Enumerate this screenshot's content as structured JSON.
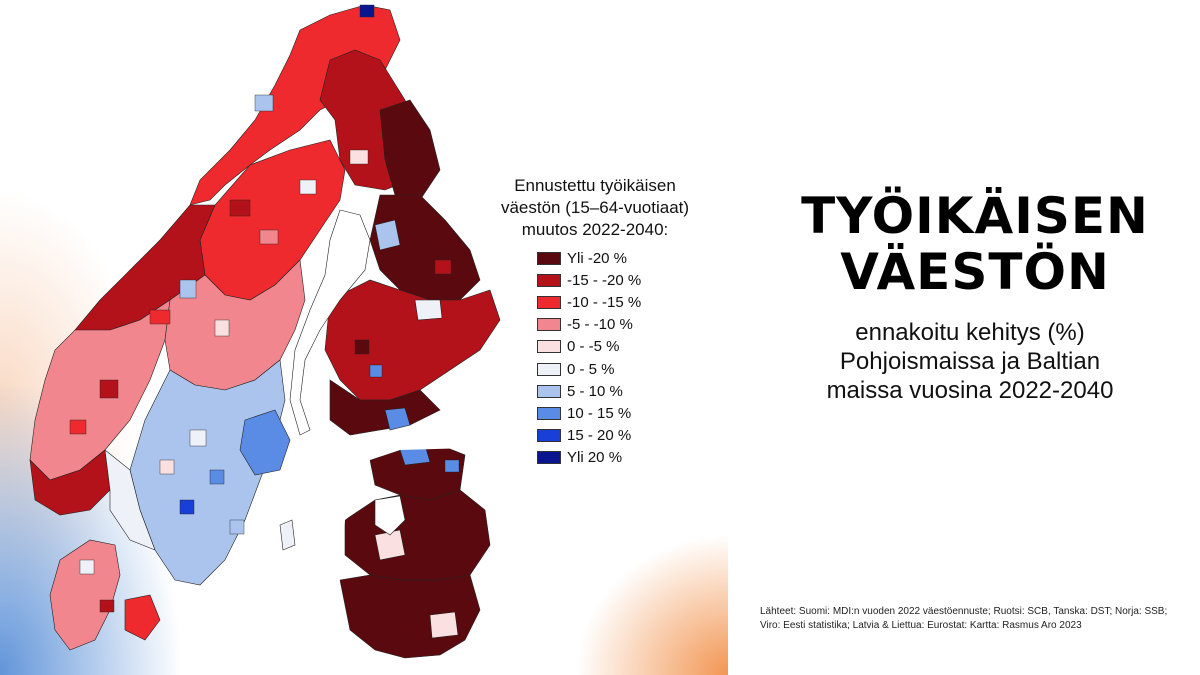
{
  "legend": {
    "title": "Ennustettu työikäisen\nväestön (15–64-vuotiaat)\nmuutos 2022-2040:",
    "items": [
      {
        "label": "Yli -20 %",
        "color": "#5a0a0e"
      },
      {
        "label": "-15 - -20 %",
        "color": "#b3121a"
      },
      {
        "label": "-10 - -15 %",
        "color": "#ee2a2e"
      },
      {
        "label": "-5 - -10 %",
        "color": "#f2868e"
      },
      {
        "label": "0 - -5 %",
        "color": "#fbe0e2"
      },
      {
        "label": "0 - 5 %",
        "color": "#eef1f8"
      },
      {
        "label": "5 - 10 %",
        "color": "#aac4ee"
      },
      {
        "label": "10 - 15 %",
        "color": "#5a8ce6"
      },
      {
        "label": "15 - 20 %",
        "color": "#1a3fd8"
      },
      {
        "label": "Yli 20 %",
        "color": "#0a1590"
      }
    ]
  },
  "title": {
    "line1": "TYÖIKÄISEN",
    "line2": "VÄESTÖN"
  },
  "subtitle": {
    "line1": "ennakoitu kehitys (%)",
    "line2": "Pohjoismaissa ja Baltian",
    "line3": "maissa vuosina 2022-2040"
  },
  "sources": "Lähteet: Suomi: MDI:n vuoden 2022 väestöennuste; Ruotsi: SCB, Tanska: DST; Norja: SSB; Viro: Eesti statistika; Latvia & Liettua: Eurostat: Kartta: Rasmus Aro 2023"
}
